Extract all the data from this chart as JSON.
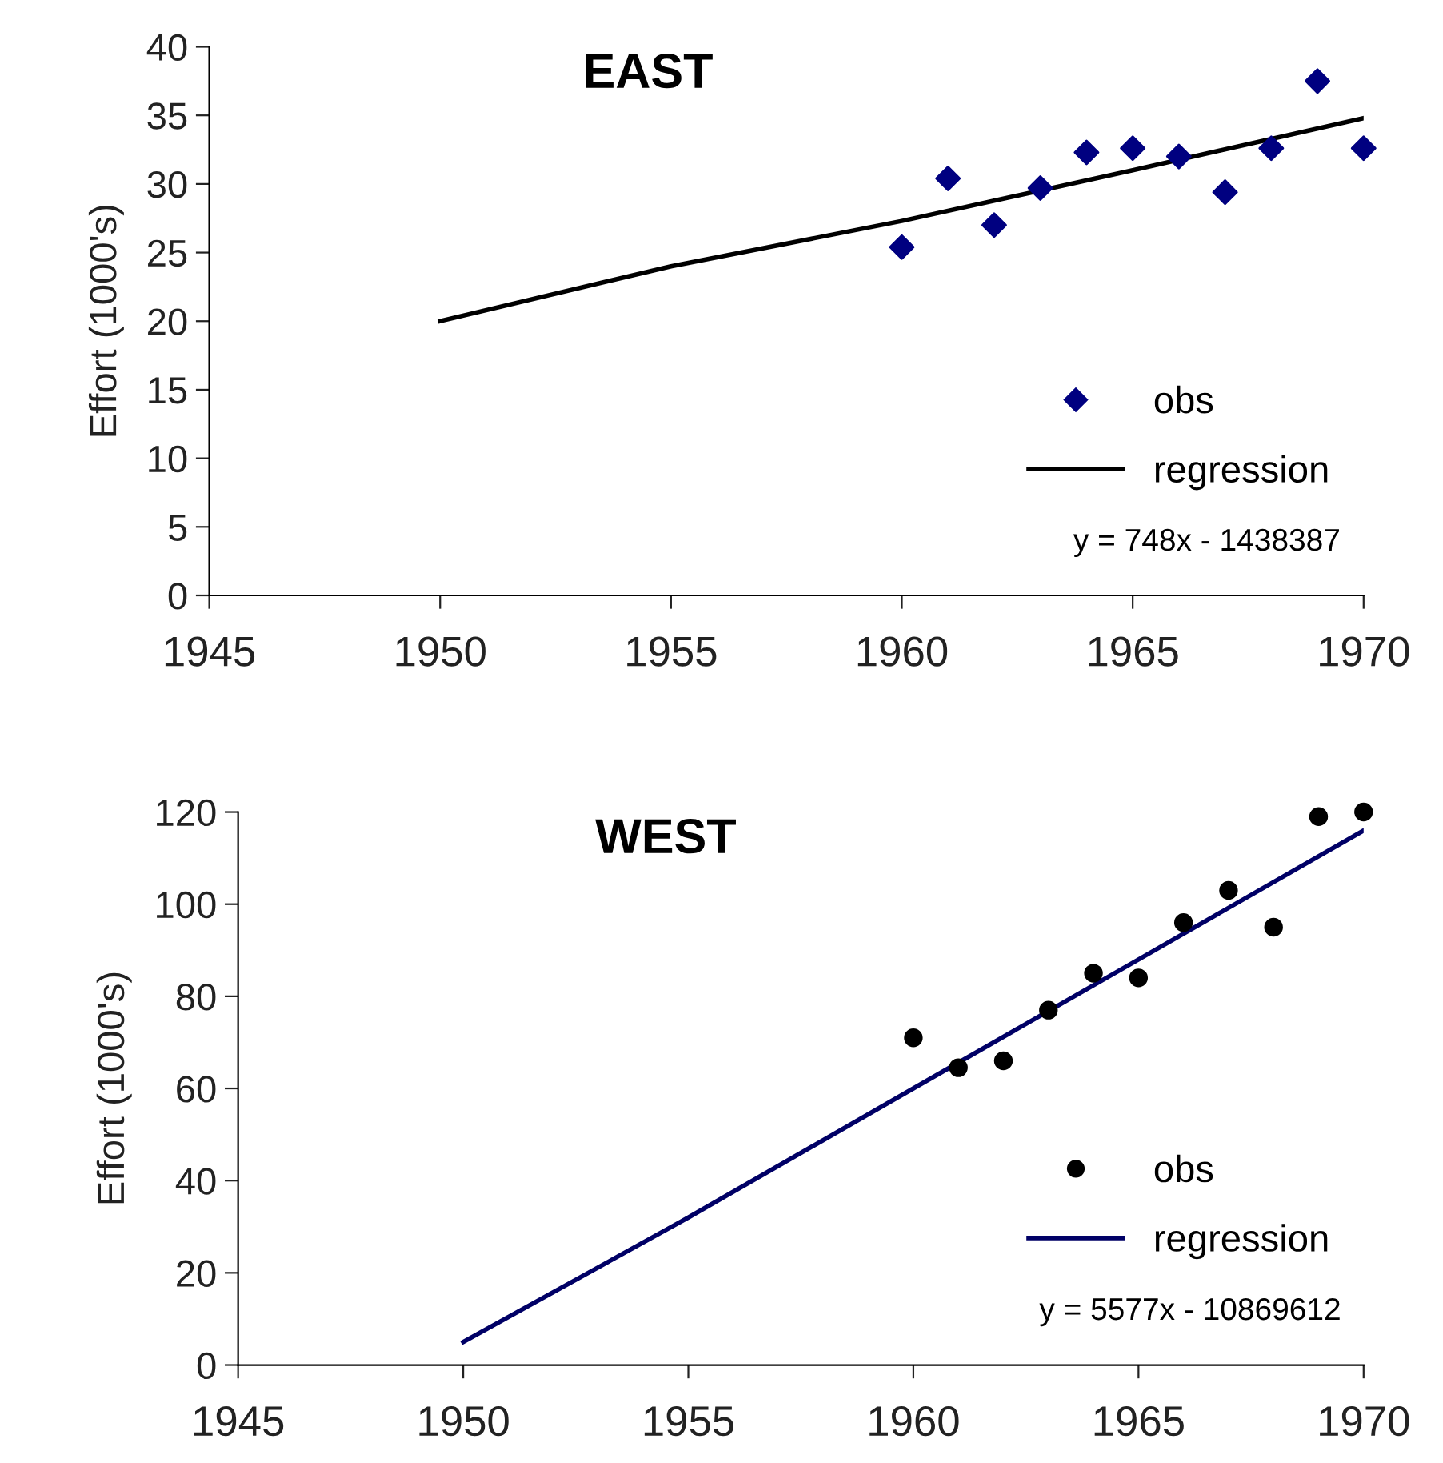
{
  "chart_data": [
    {
      "type": "scatter",
      "title": "EAST",
      "ylabel": "Effort (1000's)",
      "xlim": [
        1945,
        1970
      ],
      "xticks": [
        1945,
        1950,
        1955,
        1960,
        1965,
        1970
      ],
      "ylim": [
        0,
        40
      ],
      "yticks": [
        0,
        5,
        10,
        15,
        20,
        25,
        30,
        35,
        40
      ],
      "grid": false,
      "legend": "bottom right",
      "annotations": [
        "y = 748x - 1438387"
      ],
      "series": [
        {
          "name": "obs",
          "marker": "diamond",
          "color": "#000080",
          "x": [
            1960,
            1961,
            1962,
            1963,
            1964,
            1965,
            1966,
            1967,
            1968,
            1969,
            1970
          ],
          "values": [
            25.4,
            30.4,
            27,
            29.7,
            32.3,
            32.6,
            32,
            29.4,
            32.6,
            37.5,
            32.6
          ]
        },
        {
          "name": "regression",
          "type": "line",
          "marker": "none",
          "line_style": "solid",
          "color": "#000000",
          "x": [
            1950,
            1955,
            1960,
            1965,
            1970
          ],
          "values": [
            20,
            24,
            27.3,
            31,
            34.8
          ]
        }
      ]
    },
    {
      "type": "scatter",
      "title": "WEST",
      "ylabel": "Effort (1000's)",
      "xlim": [
        1945,
        1970
      ],
      "xticks": [
        1945,
        1950,
        1955,
        1960,
        1965,
        1970
      ],
      "ylim": [
        0,
        120
      ],
      "yticks": [
        0,
        20,
        40,
        60,
        80,
        100,
        120
      ],
      "grid": false,
      "legend": "bottom right",
      "annotations": [
        "y = 5577x - 10869612"
      ],
      "series": [
        {
          "name": "obs",
          "marker": "circle",
          "color": "#000000",
          "x": [
            1960,
            1961,
            1962,
            1963,
            1964,
            1965,
            1966,
            1967,
            1968,
            1969,
            1970
          ],
          "values": [
            71,
            64.5,
            66,
            77,
            85,
            84,
            96,
            103,
            95,
            119,
            120
          ]
        },
        {
          "name": "regression",
          "type": "line",
          "marker": "none",
          "line_style": "solid",
          "color": "#000066",
          "x": [
            1950,
            1955,
            1960,
            1965,
            1970
          ],
          "values": [
            5,
            32,
            60,
            88,
            116
          ]
        }
      ]
    }
  ]
}
